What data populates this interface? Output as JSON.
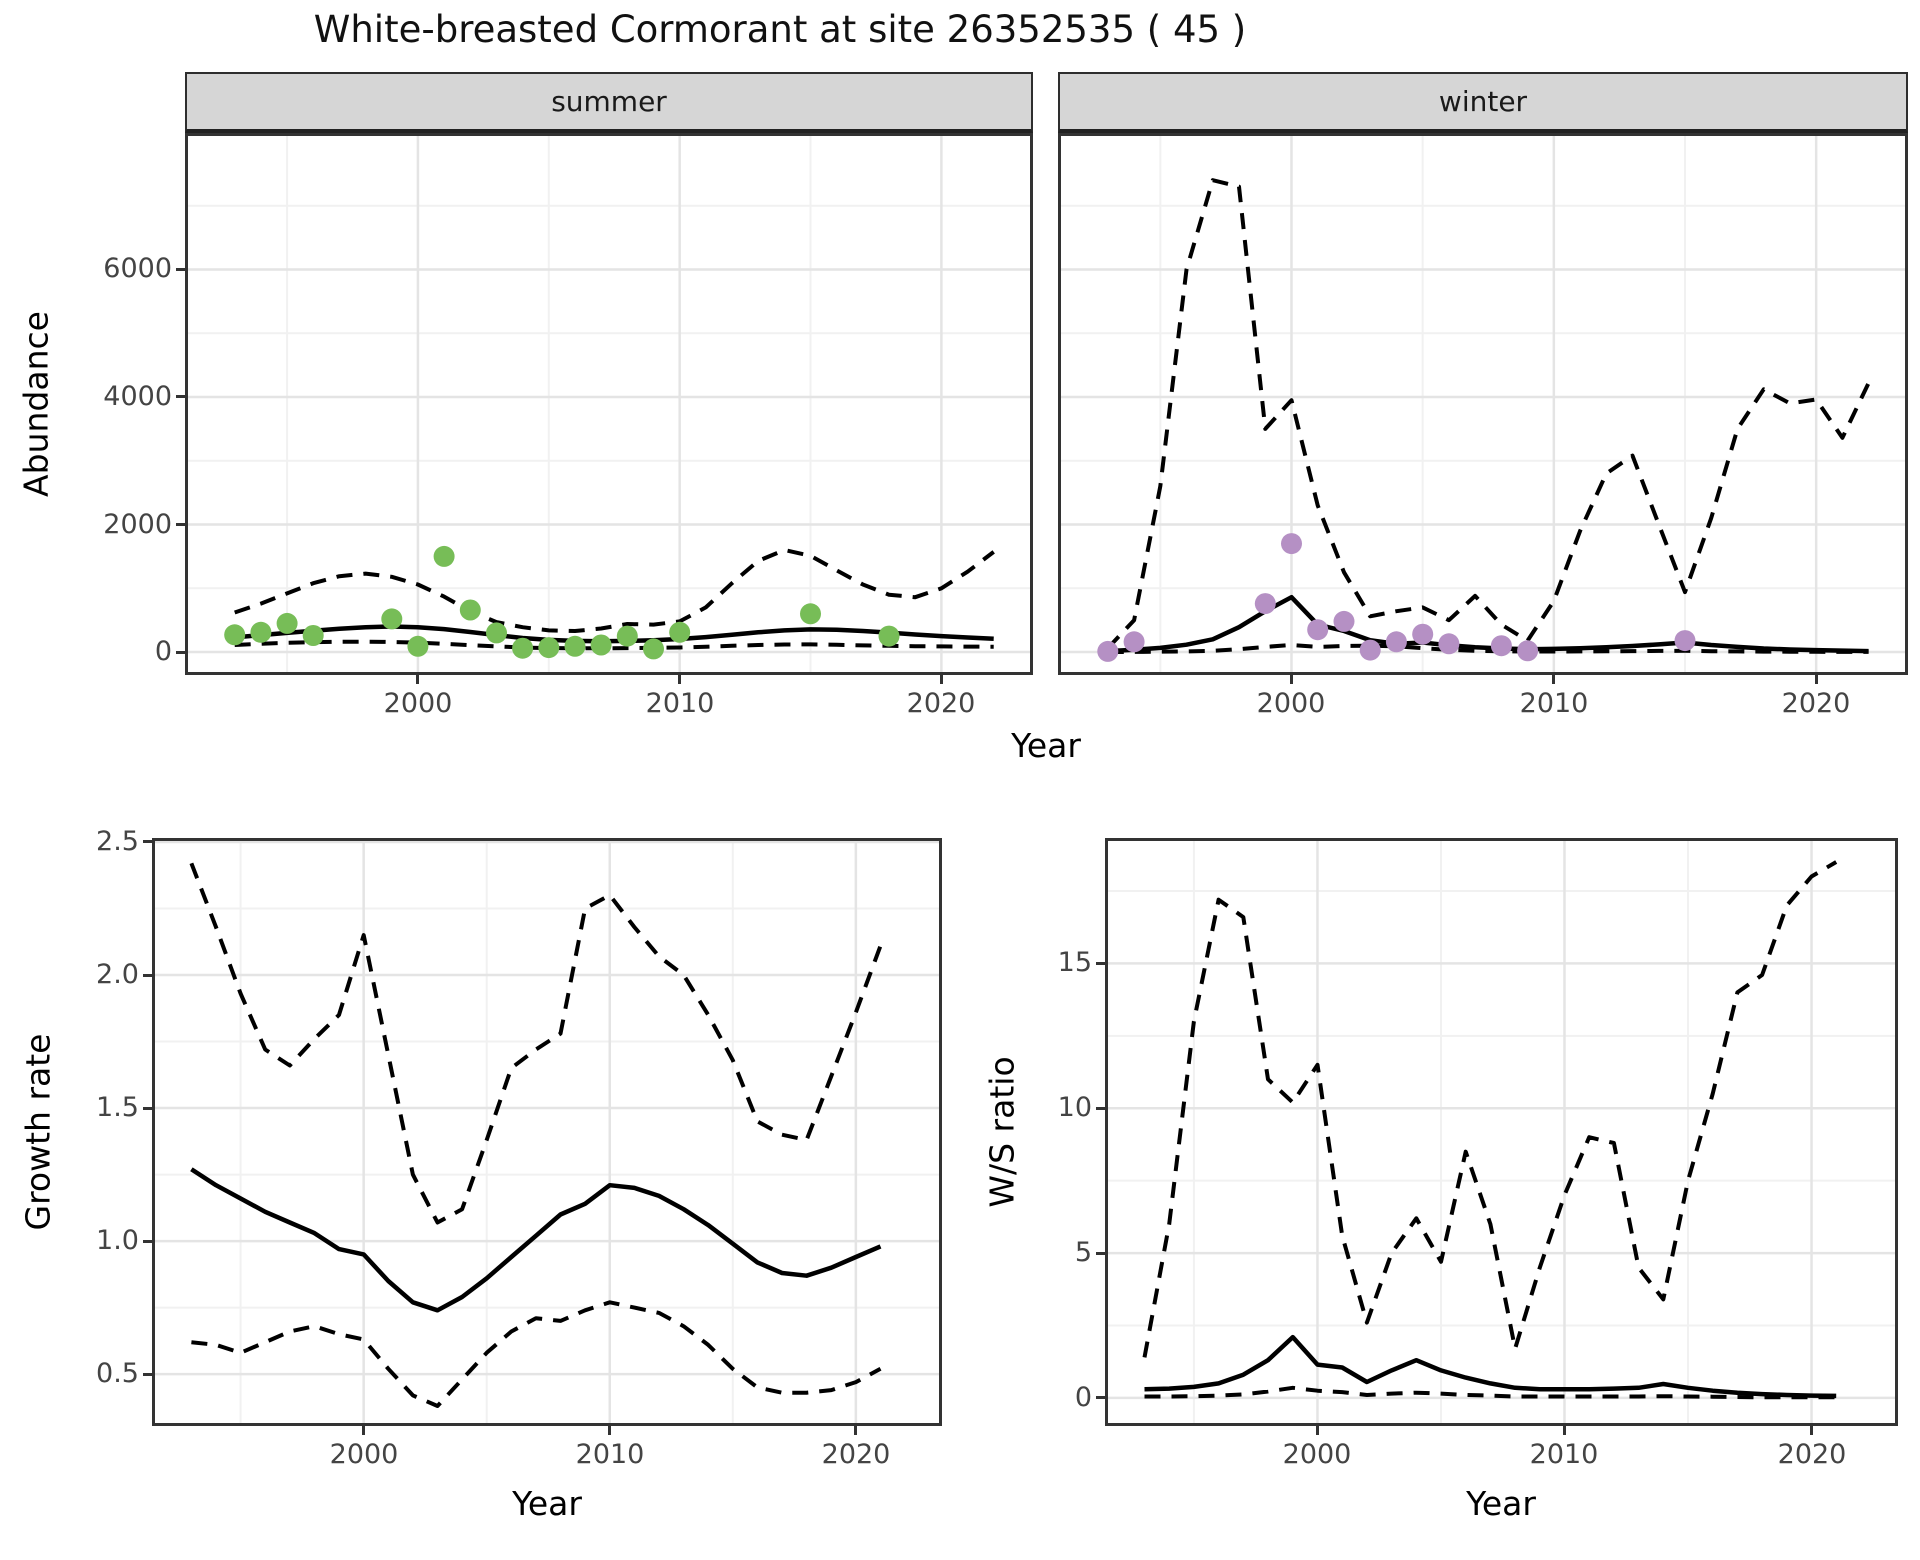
{
  "title": "White-breasted Cormorant at site 26352535 ( 45 )",
  "colors": {
    "summer_point": "#77bd57",
    "winter_point": "#b590c4",
    "line": "#000000",
    "strip_bg": "#d6d6d6",
    "grid_major": "#e4e4e4",
    "grid_minor": "#f1f1f1",
    "panel_border": "#333333",
    "axis_text": "#444444"
  },
  "chart_data": [
    {
      "id": "abundance",
      "type": "line",
      "xlabel": "Year",
      "ylabel": "Abundance",
      "xlim": [
        1991.1,
        2023.5
      ],
      "ylim": [
        -360,
        8140
      ],
      "xticks": [
        2000,
        2010,
        2020
      ],
      "xticks_minor": [
        1995,
        2005,
        2015
      ],
      "xtick_labels": [
        "2000",
        "2010",
        "2020"
      ],
      "yticks": [
        0,
        2000,
        4000,
        6000
      ],
      "yticks_minor": [
        1000,
        3000,
        5000,
        7000
      ],
      "ytick_labels": [
        "0",
        "2000",
        "4000",
        "6000"
      ],
      "grid": true,
      "legend_position": "none",
      "years": [
        1993,
        1994,
        1995,
        1996,
        1997,
        1998,
        1999,
        2000,
        2001,
        2002,
        2003,
        2004,
        2005,
        2006,
        2007,
        2008,
        2009,
        2010,
        2011,
        2012,
        2013,
        2014,
        2015,
        2016,
        2017,
        2018,
        2019,
        2020,
        2021,
        2022
      ],
      "facets": [
        {
          "name": "summer",
          "point_color": "#77bd57",
          "points": [
            [
              1993,
              270
            ],
            [
              1994,
              310
            ],
            [
              1995,
              450
            ],
            [
              1996,
              260
            ],
            [
              1999,
              520
            ],
            [
              2000,
              90
            ],
            [
              2001,
              1500
            ],
            [
              2002,
              660
            ],
            [
              2003,
              300
            ],
            [
              2004,
              60
            ],
            [
              2005,
              70
            ],
            [
              2006,
              90
            ],
            [
              2007,
              110
            ],
            [
              2008,
              250
            ],
            [
              2009,
              50
            ],
            [
              2010,
              310
            ],
            [
              2015,
              600
            ],
            [
              2018,
              250
            ]
          ],
          "fit": [
            230,
            265,
            300,
            335,
            365,
            390,
            400,
            390,
            360,
            315,
            265,
            220,
            190,
            175,
            170,
            175,
            185,
            205,
            235,
            270,
            310,
            340,
            355,
            350,
            330,
            305,
            275,
            250,
            228,
            210
          ],
          "ci_upper": [
            620,
            760,
            920,
            1080,
            1190,
            1230,
            1180,
            1060,
            870,
            640,
            470,
            390,
            340,
            330,
            370,
            440,
            430,
            480,
            700,
            1080,
            1430,
            1600,
            1510,
            1280,
            1060,
            900,
            860,
            1000,
            1260,
            1570
          ],
          "ci_lower": [
            110,
            130,
            145,
            155,
            160,
            162,
            158,
            148,
            130,
            108,
            88,
            72,
            62,
            58,
            58,
            62,
            66,
            72,
            84,
            98,
            110,
            118,
            120,
            114,
            104,
            98,
            92,
            88,
            86,
            84
          ]
        },
        {
          "name": "winter",
          "point_color": "#b590c4",
          "points": [
            [
              1993,
              10
            ],
            [
              1994,
              160
            ],
            [
              1999,
              760
            ],
            [
              2000,
              1700
            ],
            [
              2001,
              350
            ],
            [
              2002,
              480
            ],
            [
              2003,
              30
            ],
            [
              2004,
              160
            ],
            [
              2005,
              280
            ],
            [
              2006,
              130
            ],
            [
              2008,
              100
            ],
            [
              2009,
              20
            ],
            [
              2015,
              180
            ]
          ],
          "fit": [
            15,
            35,
            65,
            115,
            200,
            390,
            640,
            860,
            430,
            330,
            185,
            130,
            150,
            105,
            75,
            55,
            45,
            50,
            60,
            75,
            95,
            120,
            150,
            110,
            80,
            55,
            40,
            30,
            22,
            15
          ],
          "ci_upper": [
            60,
            500,
            2600,
            6000,
            7400,
            7300,
            3500,
            3950,
            2300,
            1250,
            560,
            640,
            700,
            500,
            880,
            430,
            180,
            800,
            1900,
            2800,
            3080,
            2000,
            940,
            2100,
            3500,
            4120,
            3900,
            3960,
            3360,
            4220
          ],
          "ci_lower": [
            0,
            2,
            5,
            10,
            20,
            45,
            80,
            110,
            80,
            95,
            100,
            90,
            60,
            35,
            20,
            12,
            8,
            8,
            10,
            12,
            15,
            18,
            20,
            14,
            10,
            7,
            5,
            4,
            3,
            2
          ]
        }
      ]
    },
    {
      "id": "growth_rate",
      "type": "line",
      "xlabel": "Year",
      "ylabel": "Growth rate",
      "xlim": [
        1991.4,
        2023.5
      ],
      "ylim": [
        0.305,
        2.515
      ],
      "xticks": [
        2000,
        2010,
        2020
      ],
      "xticks_minor": [
        1995,
        2005,
        2015
      ],
      "xtick_labels": [
        "2000",
        "2010",
        "2020"
      ],
      "yticks": [
        0.5,
        1.0,
        1.5,
        2.0,
        2.5
      ],
      "yticks_minor": [
        0.75,
        1.25,
        1.75,
        2.25
      ],
      "ytick_labels": [
        "0.5",
        "1.0",
        "1.5",
        "2.0",
        "2.5"
      ],
      "grid": true,
      "legend_position": "none",
      "years": [
        1993,
        1994,
        1995,
        1996,
        1997,
        1998,
        1999,
        2000,
        2001,
        2002,
        2003,
        2004,
        2005,
        2006,
        2007,
        2008,
        2009,
        2010,
        2011,
        2012,
        2013,
        2014,
        2015,
        2016,
        2017,
        2018,
        2019,
        2020,
        2021
      ],
      "fit": [
        1.27,
        1.21,
        1.16,
        1.11,
        1.07,
        1.03,
        0.97,
        0.95,
        0.85,
        0.77,
        0.74,
        0.79,
        0.86,
        0.94,
        1.02,
        1.1,
        1.14,
        1.21,
        1.2,
        1.17,
        1.12,
        1.06,
        0.99,
        0.92,
        0.88,
        0.87,
        0.9,
        0.94,
        0.98
      ],
      "ci_upper": [
        2.42,
        2.18,
        1.93,
        1.72,
        1.66,
        1.76,
        1.85,
        2.15,
        1.7,
        1.25,
        1.07,
        1.12,
        1.38,
        1.65,
        1.72,
        1.78,
        2.25,
        2.3,
        2.18,
        2.07,
        2.0,
        1.85,
        1.68,
        1.45,
        1.4,
        1.38,
        1.62,
        1.86,
        2.11
      ],
      "ci_lower": [
        0.62,
        0.61,
        0.58,
        0.62,
        0.66,
        0.68,
        0.65,
        0.63,
        0.52,
        0.42,
        0.38,
        0.48,
        0.58,
        0.66,
        0.71,
        0.7,
        0.74,
        0.77,
        0.75,
        0.73,
        0.68,
        0.61,
        0.52,
        0.45,
        0.43,
        0.43,
        0.44,
        0.47,
        0.52
      ]
    },
    {
      "id": "ws_ratio",
      "type": "line",
      "xlabel": "Year",
      "ylabel": "W/S ratio",
      "xlim": [
        1991.4,
        2023.5
      ],
      "ylim": [
        -0.97,
        19.33
      ],
      "xticks": [
        2000,
        2010,
        2020
      ],
      "xticks_minor": [
        1995,
        2005,
        2015
      ],
      "xtick_labels": [
        "2000",
        "2010",
        "2020"
      ],
      "yticks": [
        0,
        5,
        10,
        15
      ],
      "yticks_minor": [
        2.5,
        7.5,
        12.5,
        17.5
      ],
      "ytick_labels": [
        "0",
        "5",
        "10",
        "15"
      ],
      "grid": true,
      "legend_position": "none",
      "years": [
        1993,
        1994,
        1995,
        1996,
        1997,
        1998,
        1999,
        2000,
        2001,
        2002,
        2003,
        2004,
        2005,
        2006,
        2007,
        2008,
        2009,
        2010,
        2011,
        2012,
        2013,
        2014,
        2015,
        2016,
        2017,
        2018,
        2019,
        2020,
        2021
      ],
      "fit": [
        0.3,
        0.32,
        0.38,
        0.5,
        0.8,
        1.3,
        2.1,
        1.15,
        1.05,
        0.55,
        0.95,
        1.3,
        0.95,
        0.7,
        0.5,
        0.35,
        0.3,
        0.3,
        0.3,
        0.32,
        0.35,
        0.48,
        0.35,
        0.25,
        0.18,
        0.13,
        0.1,
        0.08,
        0.07
      ],
      "ci_upper": [
        1.4,
        6.0,
        13.0,
        17.2,
        16.6,
        11.0,
        10.2,
        11.5,
        5.6,
        2.6,
        5.0,
        6.2,
        4.7,
        8.5,
        6.0,
        1.7,
        4.5,
        7.0,
        9.0,
        8.8,
        4.5,
        3.4,
        7.5,
        10.5,
        14.0,
        14.6,
        17.0,
        18.0,
        18.5
      ],
      "ci_lower": [
        0.05,
        0.05,
        0.06,
        0.08,
        0.12,
        0.22,
        0.35,
        0.25,
        0.2,
        0.1,
        0.15,
        0.18,
        0.15,
        0.1,
        0.08,
        0.05,
        0.05,
        0.05,
        0.05,
        0.05,
        0.05,
        0.06,
        0.05,
        0.04,
        0.03,
        0.02,
        0.02,
        0.02,
        0.02
      ]
    }
  ]
}
